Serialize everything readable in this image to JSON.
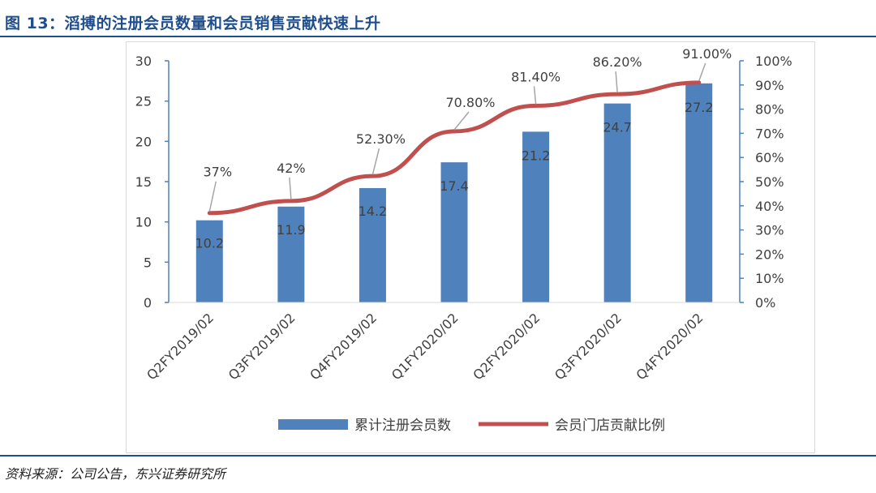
{
  "figure": {
    "title": "图 13：滔搏的注册会员数量和会员销售贡献快速上升",
    "source": "资料来源：公司公告，东兴证券研究所"
  },
  "colors": {
    "title_blue": "#1f4e8c",
    "bar": "#4f81bd",
    "line": "#c0504d",
    "axis_text": "#404040"
  },
  "chart_data": {
    "type": "bar",
    "categories": [
      "Q2FY2019/02",
      "Q3FY2019/02",
      "Q4FY2019/02",
      "Q1FY2020/02",
      "Q2FY2020/02",
      "Q3FY2020/02",
      "Q4FY2020/02"
    ],
    "series": [
      {
        "name": "累计注册会员数",
        "type": "bar",
        "axis": "left",
        "values": [
          10.2,
          11.9,
          14.2,
          17.4,
          21.2,
          24.7,
          27.2
        ],
        "labels": [
          "10.2",
          "11.9",
          "14.2",
          "17.4",
          "21.2",
          "24.7",
          "27.2"
        ]
      },
      {
        "name": "会员门店贡献比例",
        "type": "line",
        "axis": "right",
        "values": [
          37,
          42,
          52.3,
          70.8,
          81.4,
          86.2,
          91.0
        ],
        "labels": [
          "37%",
          "42%",
          "52.30%",
          "70.80%",
          "81.40%",
          "86.20%",
          "91.00%"
        ]
      }
    ],
    "left_axis": {
      "ylim": [
        0,
        30
      ],
      "ticks": [
        "0",
        "5",
        "10",
        "15",
        "20",
        "25",
        "30"
      ]
    },
    "right_axis": {
      "ylim": [
        0,
        100
      ],
      "ticks": [
        "0%",
        "10%",
        "20%",
        "30%",
        "40%",
        "50%",
        "60%",
        "70%",
        "80%",
        "90%",
        "100%"
      ]
    },
    "grid": false,
    "legend": "bottom"
  }
}
